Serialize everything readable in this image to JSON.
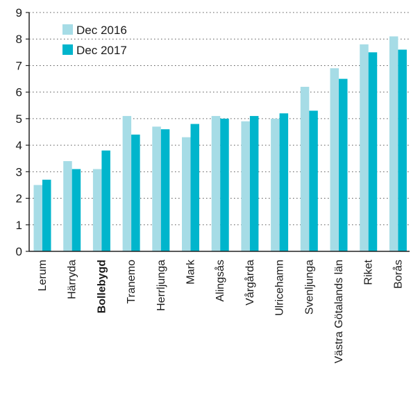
{
  "chart_data": {
    "type": "bar",
    "categories": [
      "Lerum",
      "Härryda",
      "Bollebygd",
      "Tranemo",
      "Herrljunga",
      "Mark",
      "Alingsås",
      "Vårgårda",
      "Ulricehamn",
      "Svenljunga",
      "Västra Götalands län",
      "Riket",
      "Borås"
    ],
    "highlight_category": "Bollebygd",
    "series": [
      {
        "name": "Dec 2016",
        "color": "#a6dce6",
        "values": [
          2.5,
          3.4,
          3.1,
          5.1,
          4.7,
          4.3,
          5.1,
          4.9,
          5.0,
          6.2,
          6.9,
          7.8,
          8.1
        ]
      },
      {
        "name": "Dec 2017",
        "color": "#00b5cc",
        "values": [
          2.7,
          3.1,
          3.8,
          4.4,
          4.6,
          4.8,
          5.0,
          5.1,
          5.2,
          5.3,
          6.5,
          7.5,
          7.6
        ]
      }
    ],
    "ylim": [
      0,
      9
    ],
    "yticks": [
      "0",
      "1",
      "2",
      "3",
      "4",
      "5",
      "6",
      "7",
      "8",
      "9"
    ],
    "grid": "dotted horizontal",
    "legend_position": "top-left"
  }
}
